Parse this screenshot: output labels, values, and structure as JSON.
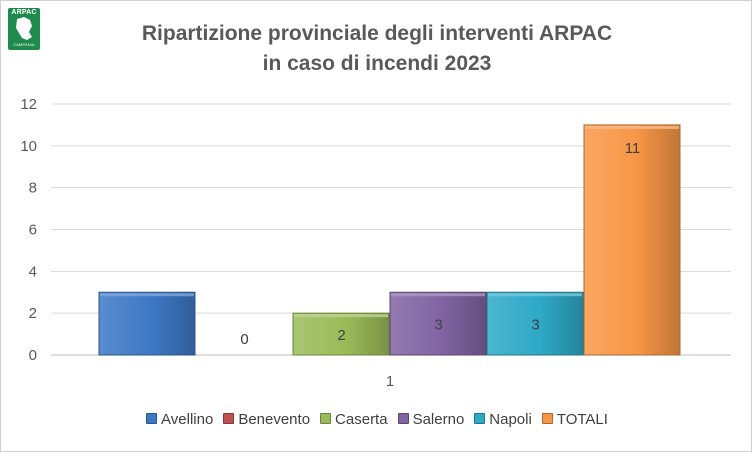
{
  "logo": {
    "text": "ARPAC",
    "subtext": "CAMPANIA",
    "color": "#1e8a4c"
  },
  "chart_data": {
    "type": "bar",
    "title": "Ripartizione provinciale degli interventi ARPAC",
    "subtitle": "in caso di incendi 2023",
    "categories": [
      "1"
    ],
    "series": [
      {
        "name": "Avellino",
        "values": [
          3
        ],
        "color": "#3d78c5",
        "label": ""
      },
      {
        "name": "Benevento",
        "values": [
          0
        ],
        "color": "#c0504d",
        "label": "0"
      },
      {
        "name": "Caserta",
        "values": [
          2
        ],
        "color": "#9bbb59",
        "label": "2"
      },
      {
        "name": "Salerno",
        "values": [
          3
        ],
        "color": "#8064a2",
        "label": "3"
      },
      {
        "name": "Napoli",
        "values": [
          3
        ],
        "color": "#2ea9c6",
        "label": "3"
      },
      {
        "name": "TOTALI",
        "values": [
          11
        ],
        "color": "#f79646",
        "label": "11"
      }
    ],
    "ylim": [
      0,
      12
    ],
    "yticks": [
      "0",
      "2",
      "4",
      "6",
      "8",
      "10",
      "12"
    ],
    "grid": true,
    "legend_position": "bottom",
    "xlabel": "",
    "ylabel": ""
  }
}
